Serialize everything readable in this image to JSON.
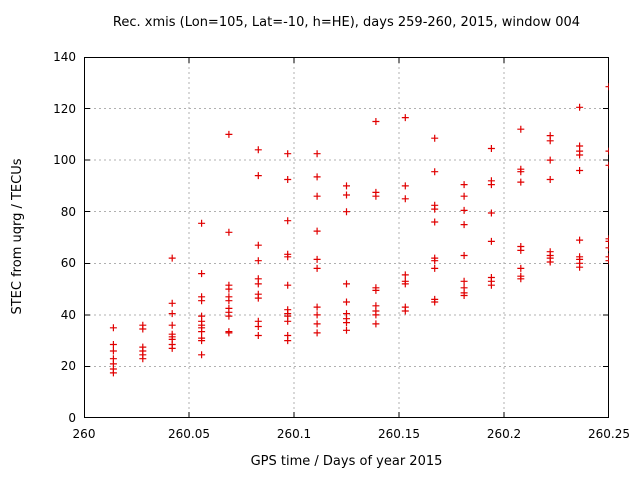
{
  "chart_data": {
    "type": "scatter",
    "title": "Rec. xmis (Lon=105, Lat=-10, h=HE), days 259-260, 2015, window 004",
    "xlabel": "GPS time / Days of year 2015",
    "ylabel": "STEC from uqrg / TECUs",
    "xlim": [
      260,
      260.25
    ],
    "ylim": [
      0,
      140
    ],
    "grid": true,
    "legend": false,
    "marker": "plus",
    "marker_color": "#e00000",
    "grid_color": "#b0b0b0",
    "xticks": {
      "values": [
        260,
        260.05,
        260.1,
        260.15,
        260.2,
        260.25
      ],
      "labels": [
        "260",
        "260.05",
        "260.1",
        "260.15",
        "260.2",
        "260.25"
      ]
    },
    "yticks": {
      "values": [
        0,
        20,
        40,
        60,
        80,
        100,
        120,
        140
      ],
      "labels": [
        "0",
        "20",
        "40",
        "60",
        "80",
        "100",
        "120",
        "140"
      ]
    },
    "series": [
      {
        "name": "STEC",
        "epochs": [
          {
            "x": 260.014,
            "stec": [
              35,
              28.5,
              26,
              23,
              21,
              19,
              17.5
            ]
          },
          {
            "x": 260.028,
            "stec": [
              36,
              34.5,
              27.5,
              26,
              24.5,
              23
            ]
          },
          {
            "x": 260.042,
            "stec": [
              62,
              44.5,
              40.5,
              36,
              32.5,
              31.5,
              30.5,
              28.5,
              27
            ]
          },
          {
            "x": 260.056,
            "stec": [
              75.5,
              56,
              47,
              45.5,
              39.5,
              37.5,
              36,
              35,
              33.5,
              31,
              30,
              24.5
            ]
          },
          {
            "x": 260.069,
            "stec": [
              110,
              72,
              51.5,
              50,
              47,
              45.5,
              42.5,
              41,
              39.5,
              33.5,
              33
            ]
          },
          {
            "x": 260.083,
            "stec": [
              104,
              94,
              67,
              61,
              54,
              52,
              48,
              46.5,
              37.5,
              35.5,
              32
            ]
          },
          {
            "x": 260.097,
            "stec": [
              102.5,
              92.5,
              76.5,
              63.5,
              62.5,
              51.5,
              42,
              40.5,
              39.5,
              37.5,
              32,
              30
            ]
          },
          {
            "x": 260.111,
            "stec": [
              102.5,
              93.5,
              86,
              72.5,
              61.5,
              58,
              43,
              40,
              36.5,
              33
            ]
          },
          {
            "x": 260.125,
            "stec": [
              90,
              86.5,
              80,
              52,
              45,
              40.5,
              38.5,
              37,
              34
            ]
          },
          {
            "x": 260.139,
            "stec": [
              115,
              87.5,
              86,
              50.5,
              49.5,
              43.5,
              41.5,
              40,
              36.5
            ]
          },
          {
            "x": 260.153,
            "stec": [
              116.5,
              90,
              85,
              55.5,
              53,
              52,
              43,
              41.5
            ]
          },
          {
            "x": 260.167,
            "stec": [
              108.5,
              95.5,
              82.5,
              81,
              76,
              62,
              61,
              58,
              46,
              45
            ]
          },
          {
            "x": 260.181,
            "stec": [
              90.5,
              86,
              80.5,
              75,
              63,
              53,
              50.5,
              48.5,
              47.5
            ]
          },
          {
            "x": 260.194,
            "stec": [
              104.5,
              92,
              90.5,
              79.5,
              68.5,
              54.5,
              53,
              51.5
            ]
          },
          {
            "x": 260.208,
            "stec": [
              112,
              96.5,
              95.5,
              91.5,
              66.5,
              65,
              58,
              55,
              54
            ]
          },
          {
            "x": 260.222,
            "stec": [
              109.5,
              107.5,
              100,
              92.5,
              64.5,
              63,
              62,
              60.5
            ]
          },
          {
            "x": 260.236,
            "stec": [
              120.5,
              105.5,
              103.5,
              102,
              96,
              69,
              62.5,
              61.5,
              60,
              58.5
            ]
          },
          {
            "x": 260.25,
            "stec": [
              128.5,
              103.5,
              98,
              69.5,
              68.5,
              66,
              62.5,
              61
            ]
          }
        ]
      }
    ]
  }
}
